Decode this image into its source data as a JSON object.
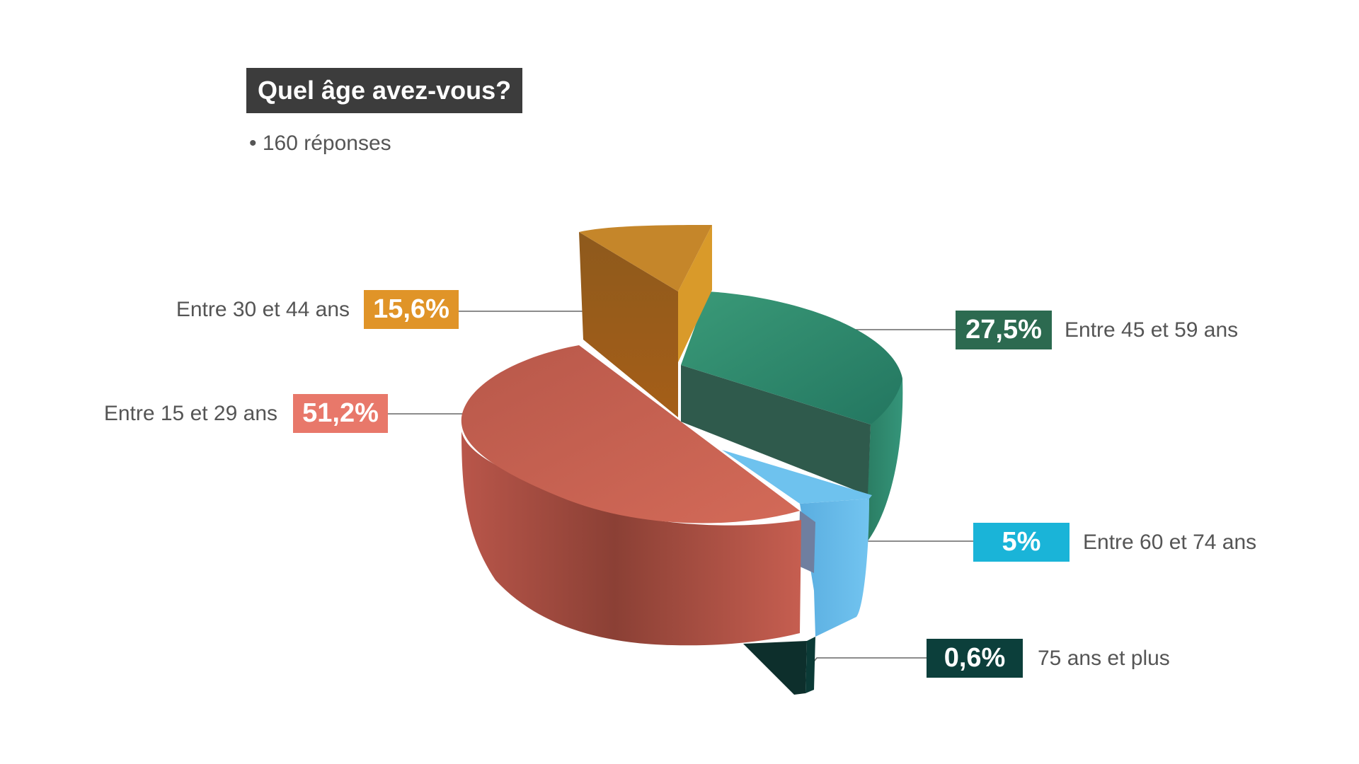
{
  "chart_data": {
    "type": "pie",
    "title": "Quel âge avez-vous?",
    "subtitle": "• 160 réponses",
    "unit": "%",
    "slices": [
      {
        "label": "Entre 15 et 29 ans",
        "value": 51.2,
        "value_label": "51,2%",
        "color": "#cd6050",
        "box_color": "#e8786a"
      },
      {
        "label": "Entre 30 et 44 ans",
        "value": 15.6,
        "value_label": "15,6%",
        "color": "#c5862a",
        "box_color": "#e09428"
      },
      {
        "label": "Entre 45 et 59 ans",
        "value": 27.5,
        "value_label": "27,5%",
        "color": "#2e8a6e",
        "box_color": "#2c6a50"
      },
      {
        "label": "Entre 60 et 74 ans",
        "value": 5,
        "value_label": "5%",
        "color": "#66bdea",
        "box_color": "#1ab4d8"
      },
      {
        "label": "75 ans et plus",
        "value": 0.6,
        "value_label": "0,6%",
        "color": "#0d3a36",
        "box_color": "#0c3f3b"
      }
    ]
  }
}
